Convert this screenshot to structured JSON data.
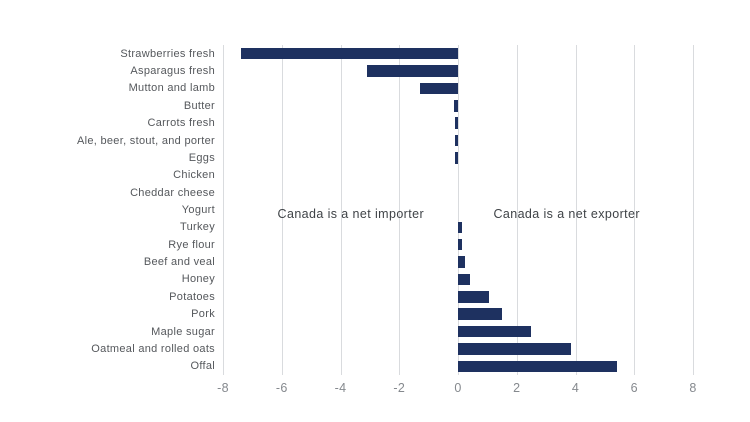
{
  "chart_data": {
    "type": "bar",
    "orientation": "horizontal",
    "title": "",
    "xlabel": "",
    "ylabel": "",
    "xlim": [
      -8,
      8
    ],
    "x_ticks": [
      -8,
      -6,
      -4,
      -2,
      0,
      2,
      4,
      6,
      8
    ],
    "grid": "vertical gridlines at every 2 units, no axis frame",
    "legend": "none",
    "bar_color": "#1e3160",
    "gridline_color": "#d9dbde",
    "category_label_color": "#55585c",
    "tick_label_color": "#85898e",
    "annotation_color": "#3f4347",
    "categories": [
      "Strawberries fresh",
      "Asparagus fresh",
      "Mutton and lamb",
      "Butter",
      "Carrots fresh",
      "Ale, beer, stout, and porter",
      "Eggs",
      "Chicken",
      "Cheddar cheese",
      "Yogurt",
      "Turkey",
      "Rye flour",
      "Beef and veal",
      "Honey",
      "Potatoes",
      "Pork",
      "Maple sugar",
      "Oatmeal and rolled oats",
      "Offal"
    ],
    "values": [
      -7.4,
      -3.1,
      -1.3,
      -0.15,
      -0.1,
      -0.1,
      -0.1,
      0,
      0,
      0,
      0.15,
      0.15,
      0.25,
      0.4,
      1.05,
      1.5,
      2.5,
      3.85,
      5.4
    ],
    "annotations": [
      {
        "text": "Canada is a net importer",
        "x_units": -3.65,
        "y_units_row": 9.75
      },
      {
        "text": "Canada is a net exporter",
        "x_units": 3.7,
        "y_units_row": 9.75
      }
    ]
  }
}
